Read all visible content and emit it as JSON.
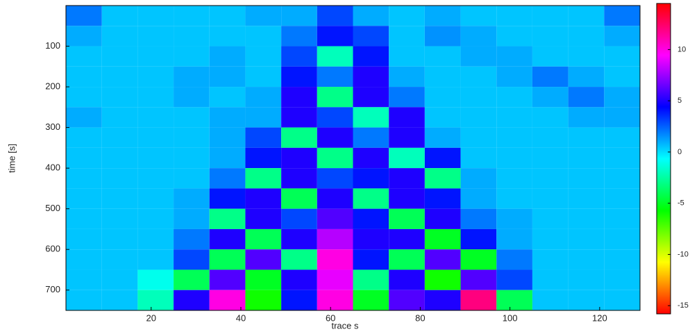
{
  "chart_data": {
    "type": "heatmap",
    "x_label": "trace s",
    "y_label": "time [s]",
    "x": [
      5,
      13,
      21,
      29,
      37,
      45,
      53,
      61,
      69,
      77,
      85,
      93,
      101,
      109,
      117,
      125
    ],
    "y": [
      25,
      75,
      125,
      175,
      225,
      275,
      325,
      375,
      425,
      475,
      525,
      575,
      625,
      675,
      725
    ],
    "z": [
      [
        2,
        0.5,
        0.5,
        0.5,
        0.5,
        1,
        1,
        3,
        1,
        0.5,
        1,
        0.5,
        0.5,
        0.5,
        0.5,
        2
      ],
      [
        1,
        0.5,
        0.5,
        0.5,
        0.5,
        0.5,
        2,
        4,
        3,
        0.5,
        1.5,
        1,
        0.5,
        0.5,
        0.5,
        1
      ],
      [
        0.5,
        0.5,
        0.5,
        0.5,
        1,
        0.5,
        3,
        -2,
        4,
        0.5,
        0.5,
        1,
        1,
        0.5,
        0.5,
        0.5
      ],
      [
        0.5,
        0.5,
        0.5,
        1,
        1,
        0.5,
        4,
        2,
        5,
        1,
        0.5,
        0.5,
        1,
        2,
        1,
        0.5
      ],
      [
        0.5,
        0.5,
        0.5,
        1,
        0.5,
        1,
        5,
        -3,
        5,
        2,
        0.5,
        0.5,
        0.5,
        1,
        2,
        1
      ],
      [
        1,
        0.5,
        0.5,
        0.5,
        1,
        1,
        5,
        3,
        -2,
        5,
        0.5,
        0.5,
        0.5,
        0.5,
        1,
        1
      ],
      [
        0.5,
        0.5,
        0.5,
        0.5,
        1,
        3,
        -3,
        5,
        2,
        5,
        1,
        0.5,
        0.5,
        0.5,
        0.5,
        0.5
      ],
      [
        0.5,
        0.5,
        0.5,
        0.5,
        1,
        4,
        5,
        -3,
        5,
        -2,
        4,
        0.5,
        0.5,
        0.5,
        0.5,
        0.5
      ],
      [
        0.5,
        0.5,
        0.5,
        0.5,
        2,
        -3,
        5,
        3,
        4,
        5,
        -3,
        1,
        0.5,
        0.5,
        0.5,
        0.5
      ],
      [
        0.5,
        0.5,
        0.5,
        1,
        4,
        5,
        -4,
        5,
        -3,
        5,
        4,
        1,
        0.5,
        0.5,
        0.5,
        0.5
      ],
      [
        0.5,
        0.5,
        0.5,
        1,
        -3,
        5,
        3,
        6,
        4,
        -4,
        5,
        2,
        1,
        0.5,
        0.5,
        0.5
      ],
      [
        0.5,
        0.5,
        0.5,
        2,
        5,
        -4,
        5,
        8,
        5,
        5,
        -5,
        4,
        1,
        0.5,
        0.5,
        0.5
      ],
      [
        0.5,
        0.5,
        0.5,
        3,
        -4,
        6,
        -3,
        10,
        4,
        -4,
        6,
        -5,
        2,
        0.5,
        0.5,
        0.5
      ],
      [
        0.5,
        0.5,
        -1,
        -4,
        6,
        -5,
        5,
        9,
        -3,
        5,
        -6,
        6,
        3,
        0.5,
        0.5,
        0.5
      ],
      [
        0.5,
        0.5,
        -2,
        5,
        10,
        -6,
        4,
        10,
        -5,
        6,
        5,
        12,
        -4,
        0.5,
        0.5,
        0.5
      ]
    ],
    "xlim": [
      1,
      129
    ],
    "xticks": [
      20,
      40,
      60,
      80,
      100,
      120
    ],
    "ylim": [
      0,
      750
    ],
    "y_reversed": true,
    "yticks": [
      100,
      200,
      300,
      400,
      500,
      600,
      700
    ],
    "clim": [
      -15.8,
      14.5
    ],
    "cticks": [
      -15,
      -10,
      -5,
      0,
      5,
      10
    ],
    "colormap": [
      "#ff0000",
      "#ffff00",
      "#00ff00",
      "#00ffff",
      "#0000ff",
      "#ff00ff",
      "#ff0000"
    ]
  }
}
